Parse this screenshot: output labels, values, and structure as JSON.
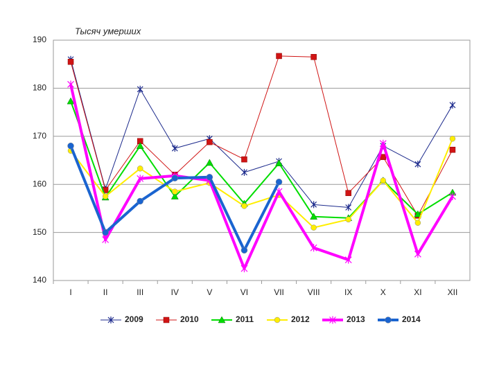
{
  "chart_data": {
    "type": "line",
    "y_axis_title": "Тысяч умерших",
    "categories": [
      "I",
      "II",
      "III",
      "IV",
      "V",
      "VI",
      "VII",
      "VIII",
      "IX",
      "X",
      "XI",
      "XII"
    ],
    "series": [
      {
        "name": "2009",
        "color": "#1c2a8c",
        "marker": "star",
        "width": 1,
        "values": [
          186,
          159,
          179.8,
          167.5,
          169.5,
          162.5,
          164.8,
          155.8,
          155.2,
          168,
          164.2,
          176.5
        ]
      },
      {
        "name": "2010",
        "color": "#d01414",
        "marker": "square",
        "width": 1,
        "values": [
          185.5,
          158.8,
          169,
          162,
          168.8,
          165.2,
          186.7,
          186.5,
          158.2,
          165.7,
          153.5,
          167.2
        ]
      },
      {
        "name": "2011",
        "color": "#00dd00",
        "marker": "triangle",
        "width": 2,
        "values": [
          177.3,
          157.3,
          168,
          157.5,
          164.5,
          156,
          164.4,
          153.3,
          153,
          160.8,
          153.8,
          158.3
        ]
      },
      {
        "name": "2012",
        "color": "#ffee00",
        "marker": "circle",
        "width": 2,
        "values": [
          167,
          157.5,
          163.3,
          158.5,
          160.3,
          155.5,
          157.8,
          151,
          152.7,
          160.8,
          152,
          169.5
        ]
      },
      {
        "name": "2013",
        "color": "#ff00ff",
        "marker": "star",
        "width": 4,
        "values": [
          180.8,
          148.5,
          161.2,
          161.8,
          160.8,
          142.5,
          158.5,
          146.8,
          144.3,
          168.5,
          145.5,
          157.5
        ]
      },
      {
        "name": "2014",
        "color": "#1a64d0",
        "marker": "circle",
        "width": 4,
        "values": [
          168,
          150,
          156.5,
          161.3,
          161.5,
          146.3,
          160.5,
          null,
          null,
          null,
          null,
          null
        ]
      }
    ],
    "ylim": [
      140,
      190
    ],
    "yticks": [
      140,
      150,
      160,
      170,
      180,
      190
    ],
    "grid": true,
    "legend": "bottom"
  }
}
